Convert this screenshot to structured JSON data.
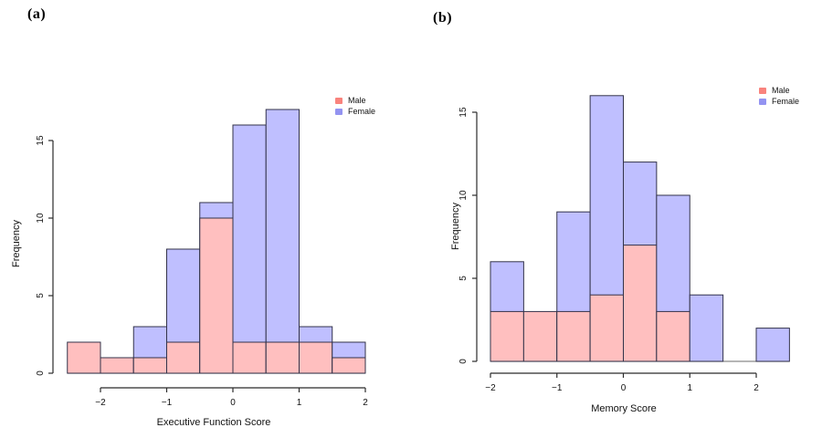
{
  "figure": {
    "background": "#ffffff",
    "panels": [
      {
        "tag": "(a)",
        "xlabel": "Executive Function Score",
        "ylabel": "Frequency"
      },
      {
        "tag": "(b)",
        "xlabel": "Memory Score",
        "ylabel": "Frequency"
      }
    ],
    "legend": {
      "items": [
        {
          "label": "Male",
          "swatch_color": "#F9837D"
        },
        {
          "label": "Female",
          "swatch_color": "#9393F1"
        }
      ]
    }
  },
  "colors": {
    "male_bar_fill": "#FFBFBF",
    "female_bar_fill": "#BFBFFF",
    "bar_border": "#33334A",
    "axis_line": "#2B2B2B",
    "baseline_gray": "#8A8A8A",
    "text": "#111111"
  },
  "chart_data": [
    {
      "type": "bar",
      "subtype": "overlaid-histogram",
      "panel_tag": "(a)",
      "title": "",
      "xlabel": "Executive Function Score",
      "ylabel": "Frequency",
      "bin_edges": [
        -2.5,
        -2,
        -1.5,
        -1,
        -0.5,
        0,
        0.5,
        1,
        1.5,
        2
      ],
      "series": [
        {
          "name": "Male",
          "values": [
            2,
            1,
            1,
            2,
            10,
            2,
            2,
            2,
            1
          ]
        },
        {
          "name": "Female",
          "values": [
            0,
            0,
            3,
            8,
            11,
            16,
            17,
            3,
            2
          ]
        }
      ],
      "bar_totals": [
        2,
        1,
        3,
        8,
        11,
        16,
        17,
        3,
        2
      ],
      "x_ticks": [
        -2,
        -1,
        0,
        1,
        2
      ],
      "x_tick_labels": [
        "−2",
        "−1",
        "0",
        "1",
        "2"
      ],
      "y_ticks": [
        0,
        5,
        10,
        15
      ],
      "y_tick_labels": [
        "0",
        "5",
        "10",
        "15"
      ],
      "xlim": [
        -2.5,
        2
      ],
      "ylim": [
        0,
        17
      ],
      "grid": false,
      "legend_position": "top-right",
      "legend_entries": [
        "Male",
        "Female"
      ]
    },
    {
      "type": "bar",
      "subtype": "overlaid-histogram",
      "panel_tag": "(b)",
      "title": "",
      "xlabel": "Memory Score",
      "ylabel": "Frequency",
      "bin_edges": [
        -2,
        -1.5,
        -1,
        -0.5,
        0,
        0.5,
        1,
        1.5,
        2,
        2.5
      ],
      "series": [
        {
          "name": "Male",
          "values": [
            3,
            3,
            3,
            4,
            7,
            3,
            0,
            0,
            0
          ]
        },
        {
          "name": "Female",
          "values": [
            6,
            0,
            9,
            16,
            12,
            10,
            4,
            0,
            2
          ]
        }
      ],
      "bar_totals": [
        6,
        3,
        9,
        16,
        12,
        10,
        4,
        0,
        2
      ],
      "x_ticks": [
        -2,
        -1,
        0,
        1,
        2
      ],
      "x_tick_labels": [
        "−2",
        "−1",
        "0",
        "1",
        "2"
      ],
      "y_ticks": [
        0,
        5,
        10,
        15
      ],
      "y_tick_labels": [
        "0",
        "5",
        "10",
        "15"
      ],
      "xlim": [
        -2,
        2.5
      ],
      "ylim": [
        0,
        16
      ],
      "grid": false,
      "legend_position": "top-right",
      "legend_entries": [
        "Male",
        "Female"
      ]
    }
  ]
}
